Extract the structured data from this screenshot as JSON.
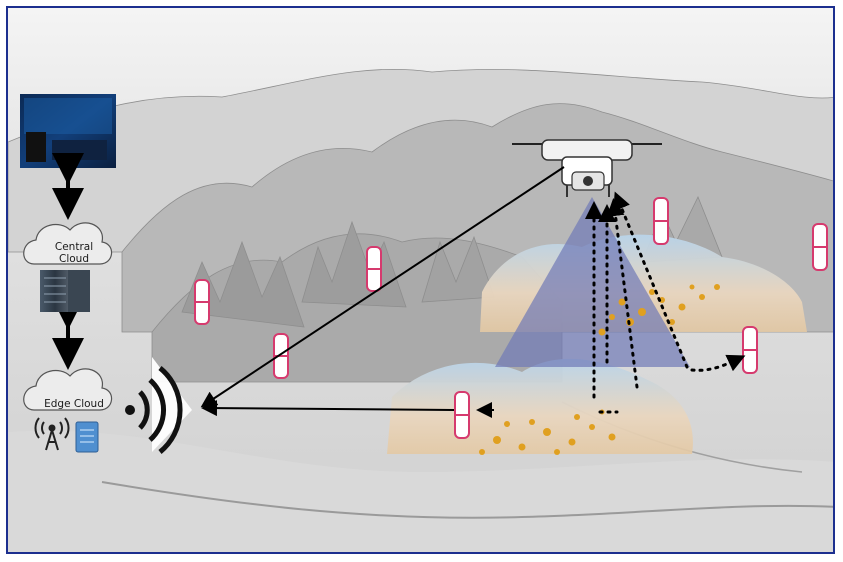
{
  "labels": {
    "central_cloud_line1": "Central",
    "central_cloud_line2": "Cloud",
    "edge_cloud": "Edge Cloud"
  },
  "icons": [
    "datacenter-screen-icon",
    "cloud-icon",
    "server-rack-icon",
    "cell-tower-icon",
    "server-icon",
    "wireless-signal-icon",
    "drone-icon",
    "sensor-icon"
  ],
  "colors": {
    "frame": "#1c2f8f",
    "sensor_outline": "#d63a6e",
    "particles": "#e0a020",
    "camera_cone": "#6f79b7"
  }
}
